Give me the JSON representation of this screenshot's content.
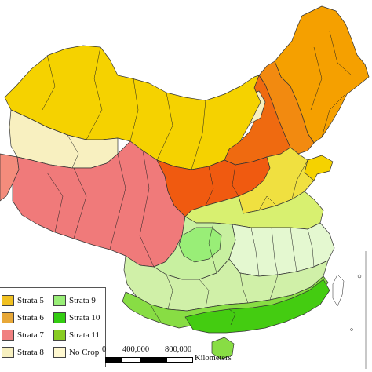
{
  "legend": {
    "items": [
      {
        "label": "Strata 5",
        "color": "#f0c020"
      },
      {
        "label": "Strata 6",
        "color": "#e8a838"
      },
      {
        "label": "Strata 7",
        "color": "#f08080"
      },
      {
        "label": "Strata 8",
        "color": "#f7f0c0"
      },
      {
        "label": "Strata 9",
        "color": "#99ee77"
      },
      {
        "label": "Strata 10",
        "color": "#33cc11"
      },
      {
        "label": "Strata 11",
        "color": "#88cc22"
      },
      {
        "label": "No Crop",
        "color": "#fff8d0"
      }
    ]
  },
  "scale_bar": {
    "labels": [
      "0",
      "400,000",
      "800,000"
    ],
    "unit": "Kilometers"
  },
  "colors": {
    "yellow": "#f5d200",
    "gold": "#f0c020",
    "orange": "#f59a00",
    "dark_orange": "#ef6a10",
    "red_orange": "#f05a10",
    "pink": "#f07a7a",
    "salmon": "#f48c7c",
    "cream": "#f8f0c0",
    "yellow_green": "#d8f070",
    "light_green": "#c8f0a0",
    "pale_green": "#e4f8d0",
    "green": "#88dd44",
    "bright_green": "#44cc11"
  }
}
